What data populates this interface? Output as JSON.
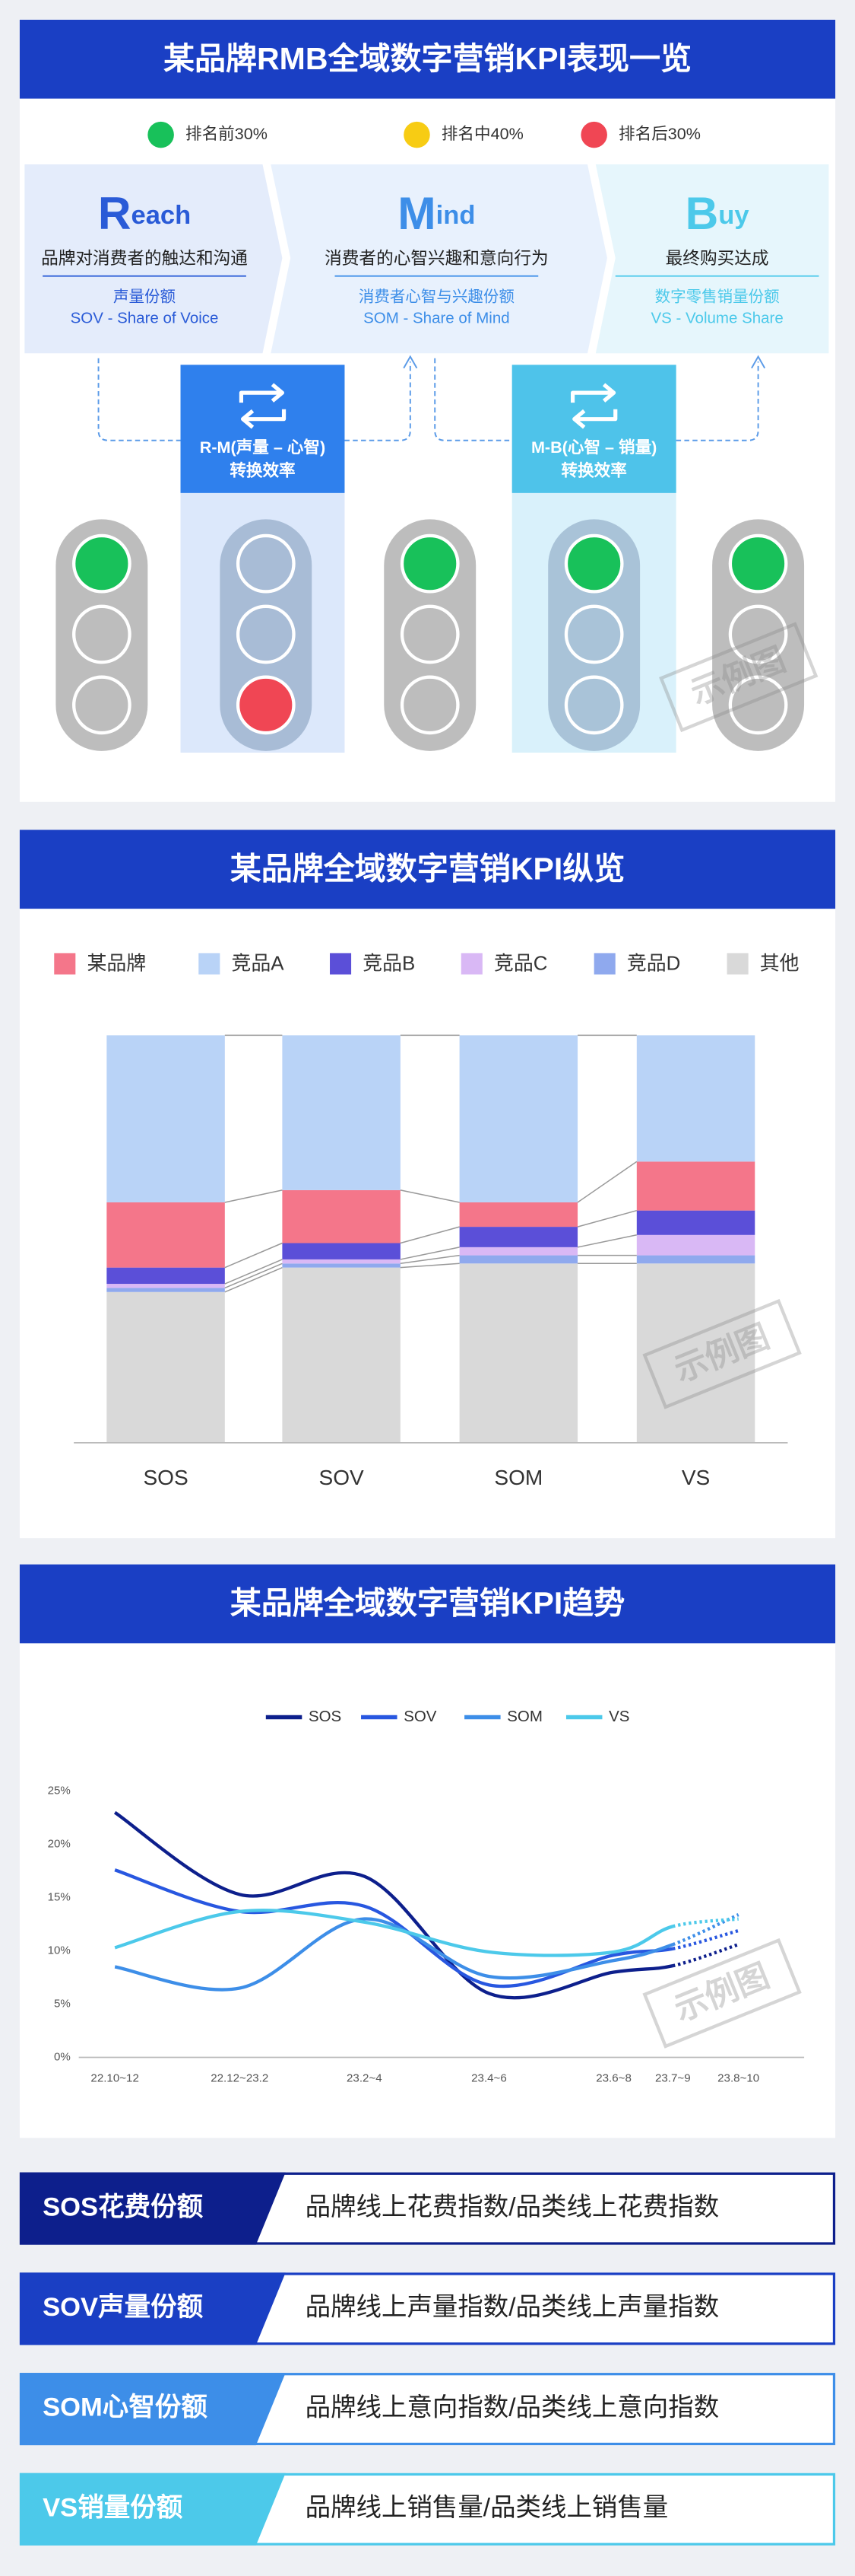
{
  "section1": {
    "title": "某品牌RMB全域数字营销KPI表现一览",
    "legend": [
      {
        "label": "排名前30%",
        "color": "#18c15a"
      },
      {
        "label": "排名中40%",
        "color": "#f7cc14"
      },
      {
        "label": "排名后30%",
        "color": "#f04654"
      }
    ],
    "stages": [
      {
        "initial": "R",
        "rest": "each",
        "desc": "品牌对消费者的触达和沟通",
        "metric": "声量份额",
        "metric_full": "SOV - Share of Voice",
        "color": "#2a5bd7",
        "bg": "#e4ecfb"
      },
      {
        "initial": "M",
        "rest": "ind",
        "desc": "消费者的心智兴趣和意向行为",
        "metric": "消费者心智与兴趣份额",
        "metric_full": "SOM - Share of Mind",
        "color": "#3d8ee8",
        "bg": "#e8f1fd"
      },
      {
        "initial": "B",
        "rest": "uy",
        "desc": "最终购买达成",
        "metric": "数字零售销量份额",
        "metric_full": "VS - Volume Share",
        "color": "#4cc9ea",
        "bg": "#e6f6fc"
      }
    ],
    "links": [
      {
        "lines": [
          "R-M(声量 – 心智)",
          "转换效率"
        ],
        "color": "#2f80ed",
        "bg": "#dce8fb"
      },
      {
        "lines": [
          "M-B(心智 – 销量)",
          "转换效率"
        ],
        "color": "#4ec3ea",
        "bg": "#d9f1fb"
      }
    ],
    "lights": [
      0,
      2,
      0,
      0,
      0
    ],
    "watermark": "示例图"
  },
  "chart_data": [
    {
      "type": "bar",
      "stacked": true,
      "title": "某品牌全域数字营销KPI纵览",
      "categories": [
        "SOS",
        "SOV",
        "SOM",
        "VS"
      ],
      "series": [
        {
          "name": "某品牌",
          "color": "#f4768a",
          "values": [
            16,
            13,
            6,
            12
          ]
        },
        {
          "name": "竞品A",
          "color": "#b9d3f7",
          "values": [
            41,
            38,
            41,
            31
          ]
        },
        {
          "name": "竞品B",
          "color": "#5b4fd8",
          "values": [
            4,
            4,
            5,
            6
          ]
        },
        {
          "name": "竞品C",
          "color": "#d9b8f5",
          "values": [
            1,
            1,
            2,
            5
          ]
        },
        {
          "name": "竞品D",
          "color": "#8fa9ee",
          "values": [
            1,
            1,
            2,
            2
          ]
        },
        {
          "name": "其他",
          "color": "#d9d9d9",
          "values": [
            37,
            43,
            44,
            44
          ]
        }
      ],
      "stack_order": [
        5,
        4,
        3,
        2,
        0,
        1
      ],
      "ylim": [
        0,
        100
      ]
    },
    {
      "type": "line",
      "title": "某品牌全域数字营销KPI趋势",
      "categories": [
        "22.10~12",
        "22.12~23.2",
        "23.2~4",
        "23.4~6",
        "23.6~8",
        "23.7~9",
        "23.8~10"
      ],
      "series": [
        {
          "name": "SOS",
          "color": "#0d1f8c",
          "values": [
            23,
            15.3,
            17,
            6,
            8,
            8.6,
            10.6
          ]
        },
        {
          "name": "SOV",
          "color": "#2857e0",
          "values": [
            17.6,
            13.7,
            14.2,
            6.8,
            9.6,
            10.2,
            11.9
          ]
        },
        {
          "name": "SOM",
          "color": "#3d8ee8",
          "values": [
            8.5,
            6.5,
            13,
            7.6,
            9.1,
            10.6,
            13.4
          ]
        },
        {
          "name": "VS",
          "color": "#4cc9ea",
          "values": [
            10.3,
            13.7,
            12.7,
            9.9,
            9.9,
            12.3,
            13
          ]
        }
      ],
      "dashed_from": 5,
      "ylim": [
        0,
        25
      ],
      "yticks": [
        {
          "value": 0,
          "label": "0%"
        },
        {
          "value": 5,
          "label": "5%"
        },
        {
          "value": 10,
          "label": "10%"
        },
        {
          "value": 15,
          "label": "15%"
        },
        {
          "value": 20,
          "label": "20%"
        },
        {
          "value": 25,
          "label": "25%"
        }
      ]
    }
  ],
  "definitions": [
    {
      "name": "SOS花费份额",
      "formula": "品牌线上花费指数/品类线上花费指数",
      "color": "#0d1f8c"
    },
    {
      "name": "SOV声量份额",
      "formula": "品牌线上声量指数/品类线上声量指数",
      "color": "#1a3fc4"
    },
    {
      "name": "SOM心智份额",
      "formula": "品牌线上意向指数/品类线上意向指数",
      "color": "#3d8ee8"
    },
    {
      "name": "VS销量份额",
      "formula": "品牌线上销售量/品类线上销售量",
      "color": "#4cc9ea"
    }
  ]
}
